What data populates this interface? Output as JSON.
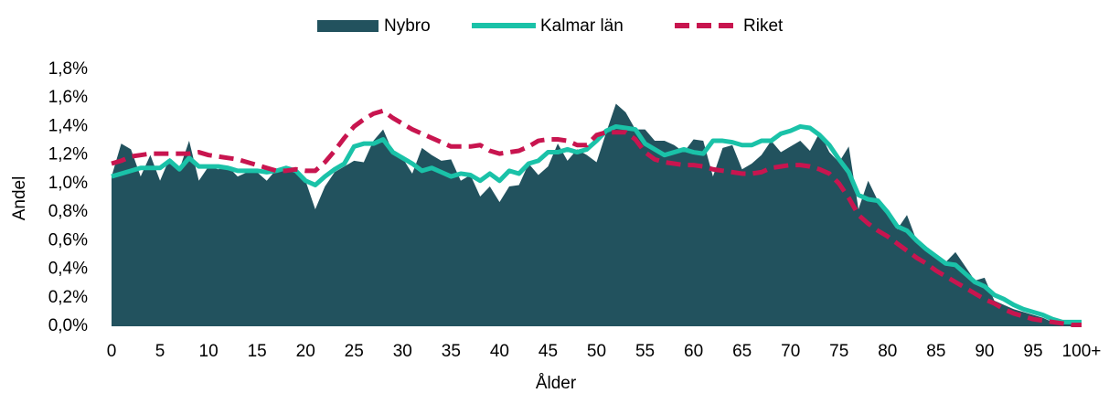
{
  "chart_data": {
    "type": "area",
    "x_label": "Ålder",
    "y_label": "Andel",
    "categories": [
      "0",
      null,
      null,
      null,
      null,
      "5",
      null,
      null,
      null,
      null,
      "10",
      null,
      null,
      null,
      null,
      "15",
      null,
      null,
      null,
      null,
      "20",
      null,
      null,
      null,
      null,
      "25",
      null,
      null,
      null,
      null,
      "30",
      null,
      null,
      null,
      null,
      "35",
      null,
      null,
      null,
      null,
      "40",
      null,
      null,
      null,
      null,
      "45",
      null,
      null,
      null,
      null,
      "50",
      null,
      null,
      null,
      null,
      "55",
      null,
      null,
      null,
      null,
      "60",
      null,
      null,
      null,
      null,
      "65",
      null,
      null,
      null,
      null,
      "70",
      null,
      null,
      null,
      null,
      "75",
      null,
      null,
      null,
      null,
      "80",
      null,
      null,
      null,
      null,
      "85",
      null,
      null,
      null,
      null,
      "90",
      null,
      null,
      null,
      null,
      "95",
      null,
      null,
      null,
      null,
      "100+"
    ],
    "ylim": [
      0,
      1.8
    ],
    "yticks": [
      {
        "value": 0,
        "label": "0,0%"
      },
      {
        "value": 0.2,
        "label": "0,2%"
      },
      {
        "value": 0.4,
        "label": "0,4%"
      },
      {
        "value": 0.6,
        "label": "0,6%"
      },
      {
        "value": 0.8,
        "label": "0,8%"
      },
      {
        "value": 1.0,
        "label": "1,0%"
      },
      {
        "value": 1.2,
        "label": "1,2%"
      },
      {
        "value": 1.4,
        "label": "1,4%"
      },
      {
        "value": 1.6,
        "label": "1,6%"
      },
      {
        "value": 1.8,
        "label": "1,8%"
      }
    ],
    "legend": "top",
    "series": [
      {
        "name": "Nybro",
        "type": "area",
        "color": "#22525e",
        "values": [
          1.05,
          1.28,
          1.24,
          1.05,
          1.2,
          1.02,
          1.18,
          1.1,
          1.3,
          1.02,
          1.12,
          1.1,
          1.12,
          1.05,
          1.08,
          1.08,
          1.02,
          1.1,
          1.08,
          1.1,
          1.02,
          0.82,
          0.98,
          1.08,
          1.12,
          1.16,
          1.15,
          1.3,
          1.38,
          1.22,
          1.18,
          1.07,
          1.25,
          1.2,
          1.16,
          1.17,
          1.02,
          1.06,
          0.91,
          0.98,
          0.87,
          0.98,
          0.99,
          1.14,
          1.06,
          1.12,
          1.28,
          1.16,
          1.24,
          1.2,
          1.15,
          1.36,
          1.56,
          1.5,
          1.38,
          1.38,
          1.3,
          1.3,
          1.27,
          1.22,
          1.31,
          1.3,
          1.05,
          1.25,
          1.27,
          1.1,
          1.14,
          1.2,
          1.3,
          1.22,
          1.26,
          1.3,
          1.23,
          1.36,
          1.22,
          1.15,
          1.26,
          0.82,
          1.02,
          0.88,
          0.8,
          0.68,
          0.78,
          0.6,
          0.55,
          0.5,
          0.45,
          0.52,
          0.42,
          0.32,
          0.34,
          0.18,
          0.15,
          0.12,
          0.1,
          0.08,
          0.06,
          0.03,
          0.02,
          0.02,
          0.02
        ]
      },
      {
        "name": "Kalmar län",
        "type": "line",
        "color": "#1ac2a8",
        "values": [
          1.05,
          1.07,
          1.09,
          1.11,
          1.11,
          1.11,
          1.16,
          1.1,
          1.18,
          1.12,
          1.12,
          1.12,
          1.11,
          1.09,
          1.09,
          1.09,
          1.08,
          1.09,
          1.11,
          1.09,
          1.02,
          0.99,
          1.05,
          1.1,
          1.14,
          1.26,
          1.28,
          1.28,
          1.31,
          1.22,
          1.18,
          1.14,
          1.09,
          1.11,
          1.08,
          1.05,
          1.07,
          1.06,
          1.02,
          1.07,
          1.02,
          1.09,
          1.07,
          1.14,
          1.16,
          1.22,
          1.22,
          1.24,
          1.22,
          1.24,
          1.3,
          1.37,
          1.4,
          1.39,
          1.38,
          1.28,
          1.24,
          1.2,
          1.22,
          1.24,
          1.22,
          1.21,
          1.3,
          1.3,
          1.29,
          1.27,
          1.27,
          1.3,
          1.3,
          1.35,
          1.37,
          1.4,
          1.39,
          1.34,
          1.27,
          1.17,
          1.08,
          0.92,
          0.89,
          0.88,
          0.8,
          0.7,
          0.67,
          0.6,
          0.54,
          0.49,
          0.44,
          0.43,
          0.37,
          0.31,
          0.28,
          0.22,
          0.19,
          0.15,
          0.12,
          0.1,
          0.08,
          0.05,
          0.03,
          0.03,
          0.03
        ]
      },
      {
        "name": "Riket",
        "type": "line",
        "dashed": true,
        "color": "#c8154f",
        "values": [
          1.14,
          1.16,
          1.19,
          1.2,
          1.21,
          1.21,
          1.21,
          1.21,
          1.21,
          1.22,
          1.2,
          1.19,
          1.18,
          1.17,
          1.15,
          1.13,
          1.11,
          1.09,
          1.09,
          1.1,
          1.09,
          1.09,
          1.15,
          1.23,
          1.32,
          1.4,
          1.45,
          1.49,
          1.51,
          1.46,
          1.42,
          1.38,
          1.35,
          1.32,
          1.29,
          1.26,
          1.26,
          1.26,
          1.27,
          1.23,
          1.21,
          1.22,
          1.23,
          1.26,
          1.3,
          1.31,
          1.31,
          1.3,
          1.27,
          1.27,
          1.34,
          1.36,
          1.36,
          1.36,
          1.31,
          1.22,
          1.17,
          1.15,
          1.14,
          1.13,
          1.13,
          1.12,
          1.1,
          1.09,
          1.08,
          1.07,
          1.07,
          1.08,
          1.11,
          1.12,
          1.13,
          1.13,
          1.12,
          1.1,
          1.07,
          1.0,
          0.9,
          0.78,
          0.72,
          0.67,
          0.63,
          0.58,
          0.53,
          0.48,
          0.44,
          0.39,
          0.35,
          0.31,
          0.27,
          0.23,
          0.19,
          0.16,
          0.12,
          0.09,
          0.07,
          0.05,
          0.04,
          0.03,
          0.02,
          0.01,
          0.01
        ]
      }
    ]
  }
}
